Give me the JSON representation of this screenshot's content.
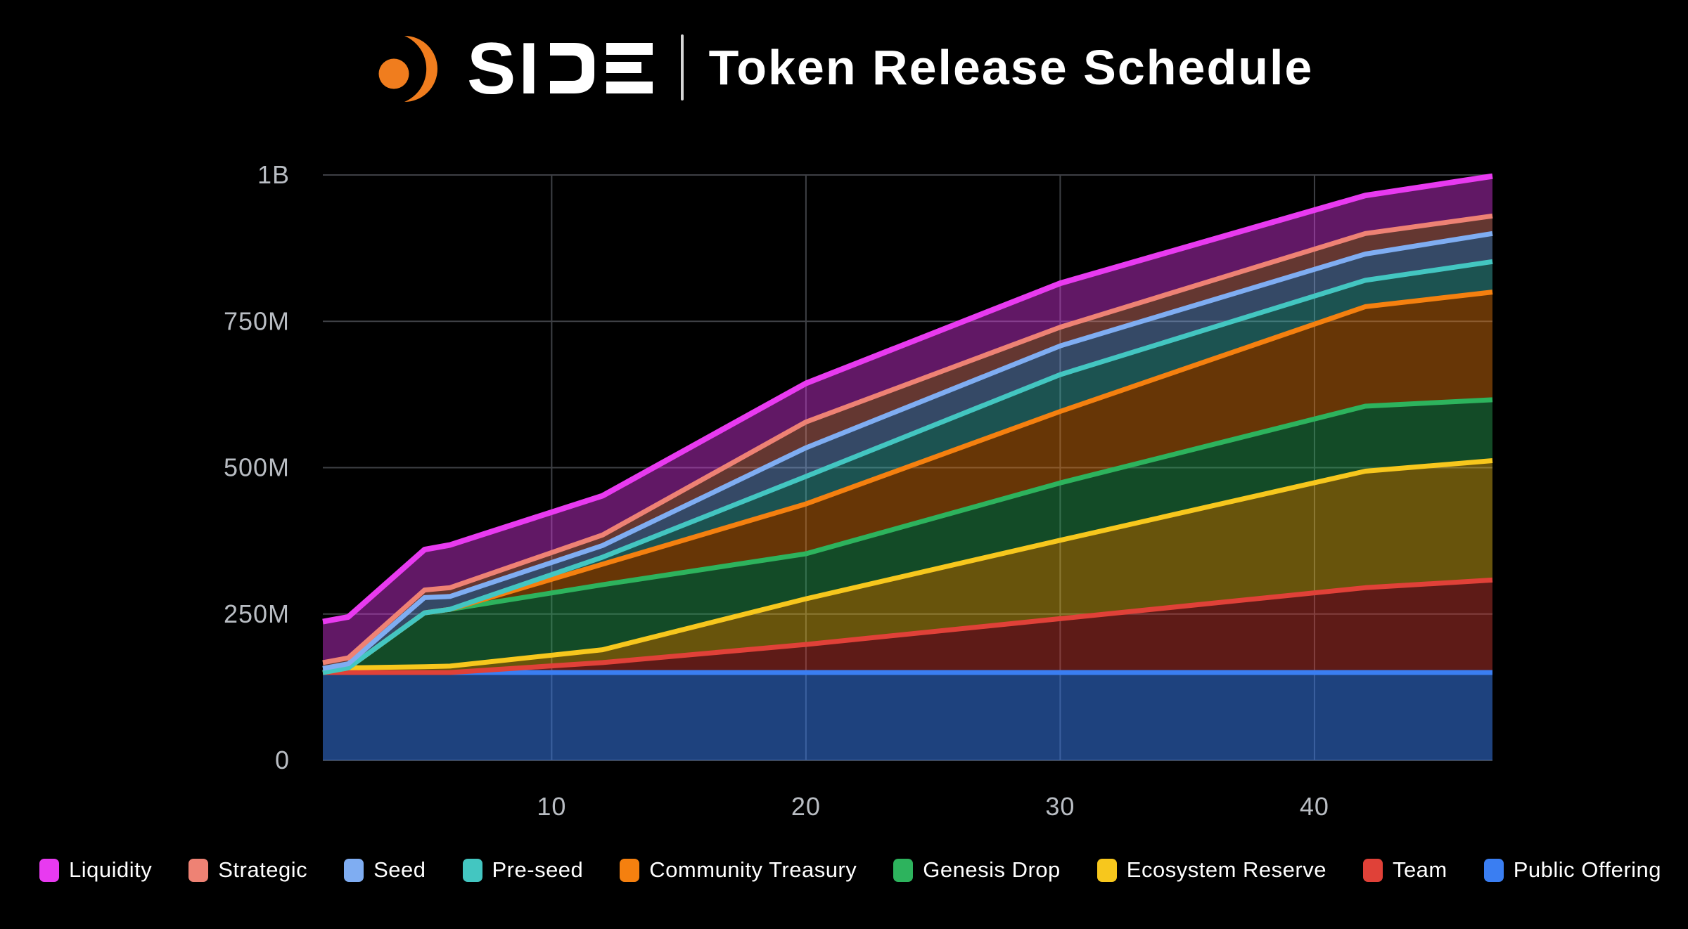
{
  "header": {
    "brand": "SIDE",
    "title": "Token Release Schedule",
    "brand_accent_color": "#f07d1e"
  },
  "chart_data": {
    "type": "area",
    "stacked": true,
    "title": "Token Release Schedule",
    "xlabel": "",
    "ylabel": "",
    "x_key_months": [
      1,
      2,
      5,
      6,
      12,
      20,
      30,
      42,
      47
    ],
    "x_range": [
      1,
      47
    ],
    "y_range": [
      0,
      1000
    ],
    "x_ticks": [
      10,
      20,
      30,
      40
    ],
    "y_ticks": [
      {
        "value": 0,
        "label": "0"
      },
      {
        "value": 250,
        "label": "250M"
      },
      {
        "value": 500,
        "label": "500M"
      },
      {
        "value": 750,
        "label": "750M"
      },
      {
        "value": 1000,
        "label": "1B"
      }
    ],
    "grid": true,
    "legend_position": "bottom",
    "units": "millions of tokens",
    "series": [
      {
        "name": "Liquidity",
        "color": "#e83af0",
        "values": [
          70,
          70,
          69,
          73,
          67,
          66,
          75,
          65,
          68
        ]
      },
      {
        "name": "Strategic",
        "color": "#ee8274",
        "values": [
          10,
          10,
          13,
          15,
          18,
          44,
          32,
          35,
          30
        ]
      },
      {
        "name": "Seed",
        "color": "#7fadf2",
        "values": [
          7,
          7,
          26,
          22,
          20,
          49,
          49,
          45,
          48
        ]
      },
      {
        "name": "Pre-seed",
        "color": "#43c6c1",
        "values": [
          0,
          0,
          0,
          0,
          12,
          47,
          63,
          45,
          52
        ]
      },
      {
        "name": "Community Treasury",
        "color": "#f5800f",
        "values": [
          0,
          0,
          0,
          0,
          35,
          85,
          122,
          170,
          184
        ]
      },
      {
        "name": "Genesis Drop",
        "color": "#2db35d",
        "values": [
          0,
          0,
          92,
          97,
          111,
          77,
          98,
          111,
          104
        ]
      },
      {
        "name": "Ecosystem Reserve",
        "color": "#f7c71d",
        "values": [
          0,
          8,
          10,
          11,
          22,
          78,
          134,
          199,
          204
        ]
      },
      {
        "name": "Team",
        "color": "#e04138",
        "values": [
          0,
          0,
          0,
          0,
          17,
          48,
          92,
          145,
          158
        ]
      },
      {
        "name": "Public Offering",
        "color": "#3a7ef2",
        "values": [
          150,
          150,
          150,
          150,
          150,
          150,
          150,
          150,
          150
        ]
      }
    ],
    "total_at_end": "1B"
  },
  "style": {
    "background": "#000000",
    "grid_color": "#3e4045",
    "tick_color": "#b9bdc3",
    "fill_opacity": 0.42,
    "bottom_fill_opacity": 0.52
  }
}
